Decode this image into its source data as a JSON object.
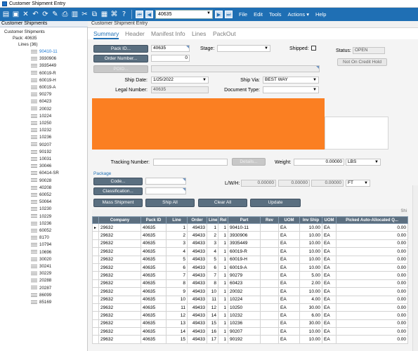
{
  "window": {
    "title": "Customer Shipment Entry"
  },
  "toolbar": {
    "nav_value": "40635",
    "menus": [
      "File",
      "Edit",
      "Tools",
      "Actions",
      "Help"
    ]
  },
  "tree": {
    "header": "Customer Shipments",
    "root": "Customer Shipments",
    "pack": "Pack: 40635",
    "lines": "Lines (36)",
    "items": [
      "90410-11",
      "3930906",
      "3935449",
      "60019-R",
      "60019-H",
      "60019-A",
      "90279",
      "60423",
      "20032",
      "10224",
      "10250",
      "10232",
      "10236",
      "90207",
      "90192",
      "10031",
      "30046",
      "60414-SR",
      "90028",
      "40208",
      "60052",
      "50064",
      "10230",
      "10229",
      "10236",
      "60052",
      "8170",
      "10794",
      "10696",
      "30020",
      "30241",
      "30229",
      "20288",
      "20287",
      "86099",
      "85169"
    ]
  },
  "detail": {
    "header": "Customer Shipment Entry",
    "tabs": [
      "Summary",
      "Header",
      "Manifest Info",
      "Lines",
      "PackOut"
    ],
    "pack_id_btn": "Pack ID...",
    "pack_id": "40635",
    "order_btn": "Order Number...",
    "order_value": "0",
    "poid_btn": "POID...",
    "stage_label": "Stage:",
    "shipped_label": "Shipped:",
    "status_label": "Status:",
    "status_value": "OPEN",
    "credit_btn": "Not On Credit Hold",
    "ship_date_label": "Ship Date:",
    "ship_date": "1/25/2022",
    "ship_via_label": "Ship Via:",
    "ship_via": "BEST WAY",
    "legal_label": "Legal Number:",
    "legal_value": "40635",
    "doc_type_label": "Document Type:",
    "tracking_label": "Tracking Number:",
    "details_btn": "Details...",
    "weight_label": "Weight:",
    "weight_value": "0.00000",
    "weight_uom": "LBS",
    "package_label": "Package",
    "code_btn": "Code...",
    "class_btn": "Classification...",
    "lwh_label": "L/W/H:",
    "lwh_l": "0.00000",
    "lwh_w": "0.00000",
    "lwh_h": "0.00000",
    "lwh_uom": "FT",
    "mass_btn": "Mass Shipment",
    "ship_all_btn": "Ship All",
    "clear_all_btn": "Clear All",
    "update_btn": "Update",
    "grid_right_label": "Shi"
  },
  "grid": {
    "columns": [
      "Company",
      "Pack ID",
      "Line",
      "Order",
      "Line",
      "Rel",
      "Part",
      "Rev",
      "UOM",
      "Inv Ship",
      "UOM",
      "Picked Auto-Allocated Q..."
    ],
    "rows": [
      [
        "29632",
        "40635",
        "1",
        "49433",
        "1",
        "1",
        "90410-11",
        "",
        "EA",
        "10.00",
        "EA",
        "0.00"
      ],
      [
        "29632",
        "40635",
        "2",
        "49433",
        "2",
        "1",
        "3930906",
        "",
        "EA",
        "10.00",
        "EA",
        "0.00"
      ],
      [
        "29632",
        "40635",
        "3",
        "49433",
        "3",
        "1",
        "3935449",
        "",
        "EA",
        "10.00",
        "EA",
        "0.00"
      ],
      [
        "29632",
        "40635",
        "4",
        "49433",
        "4",
        "1",
        "60019-R",
        "",
        "EA",
        "10.00",
        "EA",
        "0.00"
      ],
      [
        "29632",
        "40635",
        "5",
        "49433",
        "5",
        "1",
        "60019-H",
        "",
        "EA",
        "10.00",
        "EA",
        "0.00"
      ],
      [
        "29632",
        "40635",
        "6",
        "49433",
        "6",
        "1",
        "60019-A",
        "",
        "EA",
        "10.00",
        "EA",
        "0.00"
      ],
      [
        "29632",
        "40635",
        "7",
        "49433",
        "7",
        "1",
        "90279",
        "",
        "EA",
        "5.00",
        "EA",
        "0.00"
      ],
      [
        "29632",
        "40635",
        "8",
        "49433",
        "8",
        "1",
        "60423",
        "",
        "EA",
        "2.00",
        "EA",
        "0.00"
      ],
      [
        "29632",
        "40635",
        "9",
        "49433",
        "10",
        "1",
        "20032",
        "",
        "EA",
        "10.00",
        "EA",
        "0.00"
      ],
      [
        "29632",
        "40635",
        "10",
        "49433",
        "11",
        "1",
        "10224",
        "",
        "EA",
        "4.00",
        "EA",
        "0.00"
      ],
      [
        "29632",
        "40635",
        "11",
        "49433",
        "12",
        "1",
        "10250",
        "",
        "EA",
        "30.00",
        "EA",
        "0.00"
      ],
      [
        "29632",
        "40635",
        "12",
        "49433",
        "14",
        "1",
        "10232",
        "",
        "EA",
        "6.00",
        "EA",
        "0.00"
      ],
      [
        "29632",
        "40635",
        "13",
        "49433",
        "15",
        "1",
        "10236",
        "",
        "EA",
        "30.00",
        "EA",
        "0.00"
      ],
      [
        "29632",
        "40635",
        "14",
        "49433",
        "16",
        "1",
        "90207",
        "",
        "EA",
        "10.00",
        "EA",
        "0.00"
      ],
      [
        "29632",
        "40635",
        "15",
        "49433",
        "17",
        "1",
        "90192",
        "",
        "EA",
        "10.00",
        "EA",
        "0.00"
      ]
    ]
  }
}
